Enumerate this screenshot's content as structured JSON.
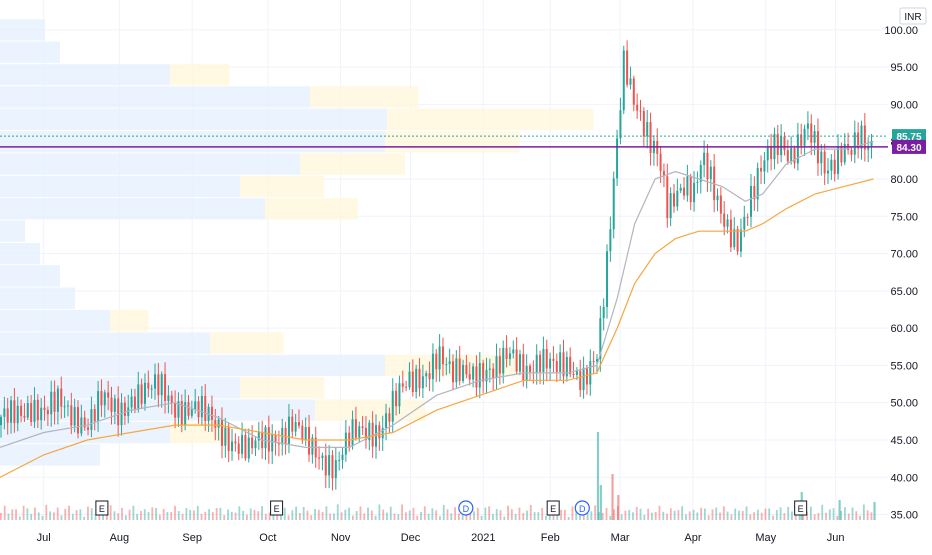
{
  "currency_label": "INR",
  "colors": {
    "up": "#26a69a",
    "down": "#ef5350",
    "sma_short": "#b2b5be",
    "sma_long": "#f5a742",
    "vp_bar": "#e3effd",
    "vp_highlight": "#fff6dc",
    "purple_line": "#7b1fa2",
    "last_price_dot": "#26a69a",
    "poc_line": "#7b1fa2"
  },
  "price_badges": [
    {
      "value": "85.75",
      "color": "#26a69a",
      "y": 85.75
    },
    {
      "value": "84.30",
      "color": "#7b1fa2",
      "y": 84.3
    }
  ],
  "event_markers": [
    {
      "label": "E",
      "type": "earnings",
      "x": 35
    },
    {
      "label": "E",
      "type": "earnings",
      "x": 95
    },
    {
      "label": "D",
      "type": "dividend",
      "x": 160
    },
    {
      "label": "E",
      "type": "earnings",
      "x": 190
    },
    {
      "label": "D",
      "type": "dividend",
      "x": 200
    },
    {
      "label": "E",
      "type": "earnings",
      "x": 275
    }
  ],
  "chart_data": {
    "type": "candlestick",
    "y_ticks": [
      "100.00",
      "95.00",
      "90.00",
      "85.00",
      "80.00",
      "75.00",
      "70.00",
      "65.00",
      "60.00",
      "55.00",
      "50.00",
      "45.00",
      "40.00",
      "35.00"
    ],
    "ylim": [
      34,
      104
    ],
    "x_ticks": [
      {
        "label": "Jul",
        "x": 15
      },
      {
        "label": "Aug",
        "x": 41
      },
      {
        "label": "Sep",
        "x": 66
      },
      {
        "label": "Oct",
        "x": 92
      },
      {
        "label": "Nov",
        "x": 117
      },
      {
        "label": "Dec",
        "x": 141
      },
      {
        "label": "2021",
        "x": 166
      },
      {
        "label": "Feb",
        "x": 189
      },
      {
        "label": "Mar",
        "x": 213
      },
      {
        "label": "Apr",
        "x": 238
      },
      {
        "label": "May",
        "x": 263
      },
      {
        "label": "Jun",
        "x": 287
      }
    ],
    "xlim": [
      0,
      305
    ],
    "close_path": [
      [
        0,
        47
      ],
      [
        5,
        49
      ],
      [
        10,
        50
      ],
      [
        15,
        48
      ],
      [
        20,
        50
      ],
      [
        25,
        49
      ],
      [
        30,
        47
      ],
      [
        35,
        50
      ],
      [
        40,
        49
      ],
      [
        45,
        51
      ],
      [
        50,
        51
      ],
      [
        55,
        52
      ],
      [
        60,
        50
      ],
      [
        65,
        49
      ],
      [
        70,
        48
      ],
      [
        75,
        47
      ],
      [
        80,
        45
      ],
      [
        85,
        43
      ],
      [
        90,
        45
      ],
      [
        95,
        46
      ],
      [
        100,
        47
      ],
      [
        105,
        44
      ],
      [
        110,
        43
      ],
      [
        115,
        42
      ],
      [
        120,
        45
      ],
      [
        125,
        46
      ],
      [
        130,
        47
      ],
      [
        135,
        50
      ],
      [
        140,
        52
      ],
      [
        145,
        54
      ],
      [
        150,
        57
      ],
      [
        155,
        53
      ],
      [
        160,
        54
      ],
      [
        165,
        55
      ],
      [
        170,
        54
      ],
      [
        175,
        56
      ],
      [
        180,
        55
      ],
      [
        185,
        56
      ],
      [
        190,
        54
      ],
      [
        195,
        55
      ],
      [
        200,
        54
      ],
      [
        205,
        56
      ],
      [
        208,
        67
      ],
      [
        211,
        82
      ],
      [
        214,
        97
      ],
      [
        217,
        92
      ],
      [
        220,
        88
      ],
      [
        223,
        84
      ],
      [
        226,
        82
      ],
      [
        229,
        76
      ],
      [
        232,
        79
      ],
      [
        235,
        80
      ],
      [
        238,
        78
      ],
      [
        241,
        82
      ],
      [
        244,
        79
      ],
      [
        247,
        76
      ],
      [
        250,
        74
      ],
      [
        253,
        72
      ],
      [
        256,
        75
      ],
      [
        259,
        78
      ],
      [
        262,
        82
      ],
      [
        265,
        85
      ],
      [
        268,
        86
      ],
      [
        271,
        83
      ],
      [
        274,
        84
      ],
      [
        277,
        86
      ],
      [
        280,
        84
      ],
      [
        283,
        82
      ],
      [
        286,
        83
      ],
      [
        289,
        84
      ],
      [
        292,
        83
      ],
      [
        295,
        85
      ],
      [
        298,
        84
      ],
      [
        300,
        86
      ]
    ],
    "sma_short_path": [
      [
        0,
        44
      ],
      [
        15,
        46
      ],
      [
        30,
        47
      ],
      [
        45,
        49
      ],
      [
        60,
        50
      ],
      [
        75,
        48
      ],
      [
        90,
        45
      ],
      [
        105,
        44
      ],
      [
        120,
        44
      ],
      [
        135,
        47
      ],
      [
        150,
        51
      ],
      [
        165,
        53
      ],
      [
        180,
        54
      ],
      [
        195,
        54
      ],
      [
        205,
        55
      ],
      [
        212,
        64
      ],
      [
        218,
        74
      ],
      [
        225,
        80
      ],
      [
        232,
        81
      ],
      [
        240,
        80
      ],
      [
        248,
        79
      ],
      [
        256,
        77
      ],
      [
        262,
        78
      ],
      [
        270,
        82
      ],
      [
        280,
        84
      ],
      [
        290,
        84
      ],
      [
        300,
        85
      ]
    ],
    "sma_long_path": [
      [
        0,
        40
      ],
      [
        15,
        43
      ],
      [
        30,
        45
      ],
      [
        45,
        46
      ],
      [
        60,
        47
      ],
      [
        75,
        47
      ],
      [
        90,
        46
      ],
      [
        105,
        45
      ],
      [
        120,
        45
      ],
      [
        135,
        46
      ],
      [
        150,
        49
      ],
      [
        165,
        51
      ],
      [
        180,
        53
      ],
      [
        195,
        53
      ],
      [
        205,
        54
      ],
      [
        212,
        60
      ],
      [
        218,
        66
      ],
      [
        225,
        70
      ],
      [
        232,
        72
      ],
      [
        240,
        73
      ],
      [
        248,
        73
      ],
      [
        256,
        73
      ],
      [
        262,
        74
      ],
      [
        270,
        76
      ],
      [
        280,
        78
      ],
      [
        290,
        79
      ],
      [
        300,
        80
      ]
    ],
    "volume_bars": [
      {
        "x": 205,
        "v": 88,
        "up": true
      },
      {
        "x": 206,
        "v": 35,
        "up": true
      },
      {
        "x": 210,
        "v": 46,
        "up": false
      },
      {
        "x": 212,
        "v": 25,
        "up": false
      },
      {
        "x": 275,
        "v": 28,
        "up": true
      },
      {
        "x": 288,
        "v": 20,
        "up": true
      },
      {
        "x": 300,
        "v": 18,
        "up": true
      }
    ],
    "volume_profile": [
      {
        "y": 100,
        "w": 45,
        "hl": false
      },
      {
        "y": 97,
        "w": 60,
        "hl": false
      },
      {
        "y": 94,
        "w": 170,
        "hl": false
      },
      {
        "y": 91,
        "w": 310,
        "hl": false
      },
      {
        "y": 88,
        "w": 590,
        "hl": true
      },
      {
        "y": 85,
        "w": 385,
        "hl": false
      },
      {
        "y": 82,
        "w": 300,
        "hl": false
      },
      {
        "y": 79,
        "w": 240,
        "hl": false
      },
      {
        "y": 76,
        "w": 265,
        "hl": false
      },
      {
        "y": 73,
        "w": 25,
        "hl": false
      },
      {
        "y": 70,
        "w": 40,
        "hl": false
      },
      {
        "y": 67,
        "w": 60,
        "hl": false
      },
      {
        "y": 64,
        "w": 75,
        "hl": false
      },
      {
        "y": 61,
        "w": 110,
        "hl": false
      },
      {
        "y": 58,
        "w": 210,
        "hl": false
      },
      {
        "y": 55,
        "w": 385,
        "hl": true
      },
      {
        "y": 52,
        "w": 240,
        "hl": false
      },
      {
        "y": 49,
        "w": 315,
        "hl": false
      },
      {
        "y": 46,
        "w": 170,
        "hl": false
      },
      {
        "y": 43,
        "w": 100,
        "hl": false
      }
    ]
  }
}
